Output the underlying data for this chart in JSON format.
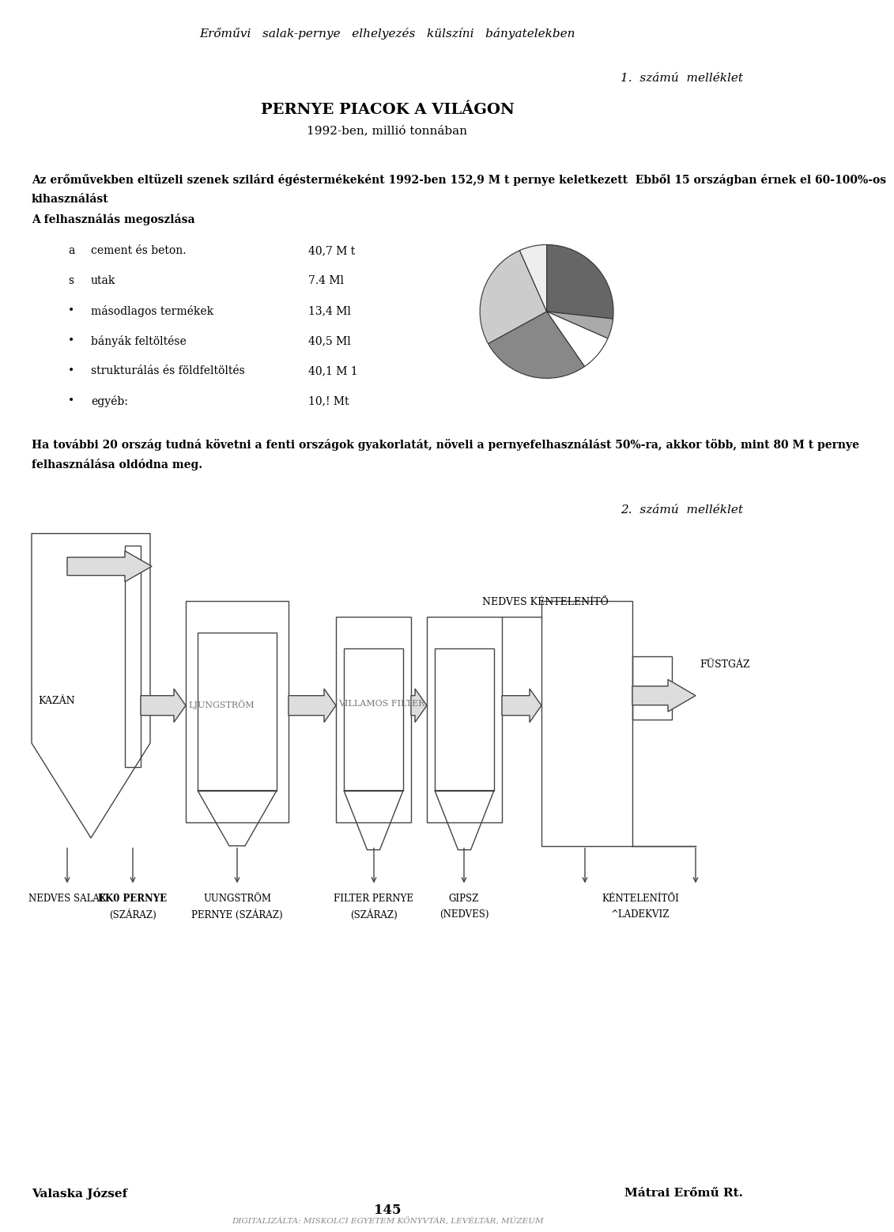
{
  "page_title": "Erőművi   salak-pernye   elhelyezés   külszíni   bányatelekben",
  "melleklet1": "1.  számú  melléklet",
  "main_title": "PERNYE PIACOK A VILÁGON",
  "subtitle": "1992-ben, millió tonnában",
  "body_text_line1": "Az erőművekben eltüzeli szenek szilárd égéstermékeként 1992-ben 152,9 M t pernye keletkezett  Ebből 15 országban érnek el 60-100%-os",
  "body_text_line2": "kihasználást",
  "body_text2": "A felhasználás megoszlása",
  "list_items": [
    {
      "bullet": "a",
      "label": "cement és beton.",
      "value": "40,7 M t"
    },
    {
      "bullet": "s",
      "label": "utak",
      "value": "7.4 Ml"
    },
    {
      "bullet": "•",
      "label": "másodlagos termékek",
      "value": "13,4 Ml"
    },
    {
      "bullet": "•",
      "label": "bányák feltöltése",
      "value": "40,5 Ml"
    },
    {
      "bullet": "•",
      "label": "strukturálás és földfeltöltés",
      "value": "40,1 M 1"
    },
    {
      "bullet": "•",
      "label": "egyéb:",
      "value": "10,! Mt"
    }
  ],
  "pie_values": [
    40.7,
    7.4,
    13.4,
    40.5,
    40.1,
    10.1
  ],
  "pie_colors": [
    "#666666",
    "#aaaaaa",
    "#ffffff",
    "#888888",
    "#cccccc",
    "#eeeeee"
  ],
  "para2_line1": "Ha további 20 ország tudná követni a fenti országok gyakorlatát, növeli a pernyefelhasználást 50%-ra, akkor több, mint 80 M t pernye",
  "para2_line2": "felhasználása oldódna meg.",
  "melleklet2": "2.  számú  melléklet",
  "nedves_kentlenito": "NEDVES KÉNTELENÍTŐ",
  "fustgaz": "FÜSTGÁZ",
  "kazan": "KAZÁN",
  "ljungstrom": "LJUNGSTRÖM",
  "villamos_filter": "VILLAMOS FILTER",
  "bottom_labels": [
    {
      "line1": "NEDVES SALAK",
      "line2": "",
      "bold": false
    },
    {
      "line1": "EK0 PERNYE",
      "line2": "(SZÁRAZ)",
      "bold": true
    },
    {
      "line1": "UUNGSTRÖM",
      "line2": "PERNYE (SZÁRAZ)",
      "bold": false
    },
    {
      "line1": "FILTER PERNYE",
      "line2": "(SZÁRAZ)",
      "bold": false
    },
    {
      "line1": "GIPSZ",
      "line2": "(NEDVES)",
      "bold": false
    },
    {
      "line1": "KÉNTELENÍTŐI",
      "line2": "^LADEKVIZ",
      "bold": false
    }
  ],
  "footer_left": "Valaska József",
  "footer_right": "Mátrai Erőmű Rt.",
  "page_number": "145",
  "digitalized": "DIGITALIZÁLTA: MISKOLCI EGYETEM KÖNYVTÁR, LEVÉLTÁR, MÚZEUM",
  "bg_color": "#ffffff",
  "text_color": "#000000",
  "gray": "#444444",
  "light_gray": "#bbbbbb"
}
